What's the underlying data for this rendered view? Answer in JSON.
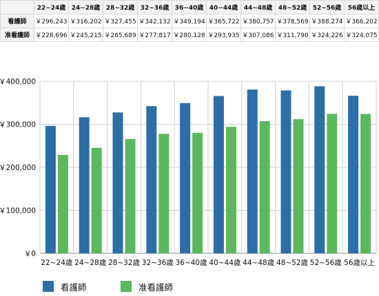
{
  "table": {
    "header": [
      "",
      "22~24歳",
      "24~28歳",
      "28~32歳",
      "32~36歳",
      "36~40歳",
      "40~44歳",
      "44~48歳",
      "48~52歳",
      "52~56歳",
      "56歳以上"
    ],
    "rows": [
      {
        "label": "看護師",
        "cells": [
          "￥296,243",
          "￥316,202",
          "￥327,455",
          "￥342,132",
          "￥349,194",
          "￥365,722",
          "￥380,757",
          "￥378,569",
          "￥388,274",
          "￥366,202"
        ]
      },
      {
        "label": "准看護師",
        "cells": [
          "￥228,696",
          "￥245,215",
          "￥265,689",
          "￥277,817",
          "￥280,128",
          "￥293,935",
          "￥307,086",
          "￥311,790",
          "￥324,226",
          "￥324,075"
        ]
      }
    ]
  },
  "chart_data": {
    "type": "bar",
    "categories": [
      "22~24歳",
      "24~28歳",
      "28~32歳",
      "32~36歳",
      "36~40歳",
      "40~44歳",
      "44~48歳",
      "48~52歳",
      "52~56歳",
      "56歳以上"
    ],
    "series": [
      {
        "name": "看護師",
        "color": "#2e6ea6",
        "values": [
          296243,
          316202,
          327455,
          342132,
          349194,
          365722,
          380757,
          378569,
          388274,
          366202
        ]
      },
      {
        "name": "准看護師",
        "color": "#5cb85c",
        "values": [
          228696,
          245215,
          265689,
          277817,
          280128,
          293935,
          307086,
          311790,
          324226,
          324075
        ]
      }
    ],
    "ylim": [
      0,
      400000
    ],
    "yticks": [
      "￥0",
      "￥100,000",
      "￥200,000",
      "￥300,000",
      "￥400,000"
    ],
    "grid": true,
    "legend_position": "bottom-left"
  }
}
